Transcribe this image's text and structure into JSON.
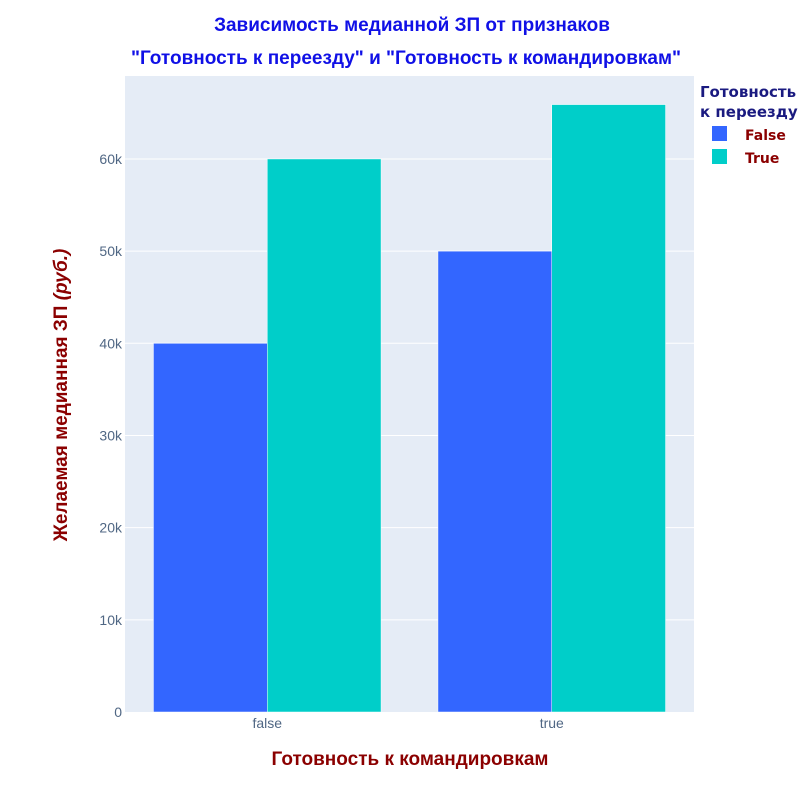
{
  "chart_data": {
    "type": "bar",
    "title_lines": [
      "Зависимость медианной ЗП от признаков",
      "\"Готовность к переезду\" и \"Готовность к командировкам\""
    ],
    "xlabel": "Готовность к командировкам",
    "ylabel_main": "Желаемая медианная ЗП ",
    "ylabel_unit": "(руб.)",
    "categories": [
      "false",
      "true"
    ],
    "legend_title_lines": [
      "Готовность",
      "к переезду"
    ],
    "series": [
      {
        "name": "False",
        "color": "#3366ff",
        "values": [
          40000,
          50000
        ]
      },
      {
        "name": "True",
        "color": "#00cec9",
        "values": [
          60000,
          65900
        ]
      }
    ],
    "ylim": [
      0,
      69000
    ],
    "yticks": [
      0,
      10000,
      20000,
      30000,
      40000,
      50000,
      60000
    ],
    "ytick_labels": [
      "0",
      "10k",
      "20k",
      "30k",
      "40k",
      "50k",
      "60k"
    ],
    "plot_bg": "#e5ecf6",
    "grid": true,
    "legend_position": "top-right"
  }
}
